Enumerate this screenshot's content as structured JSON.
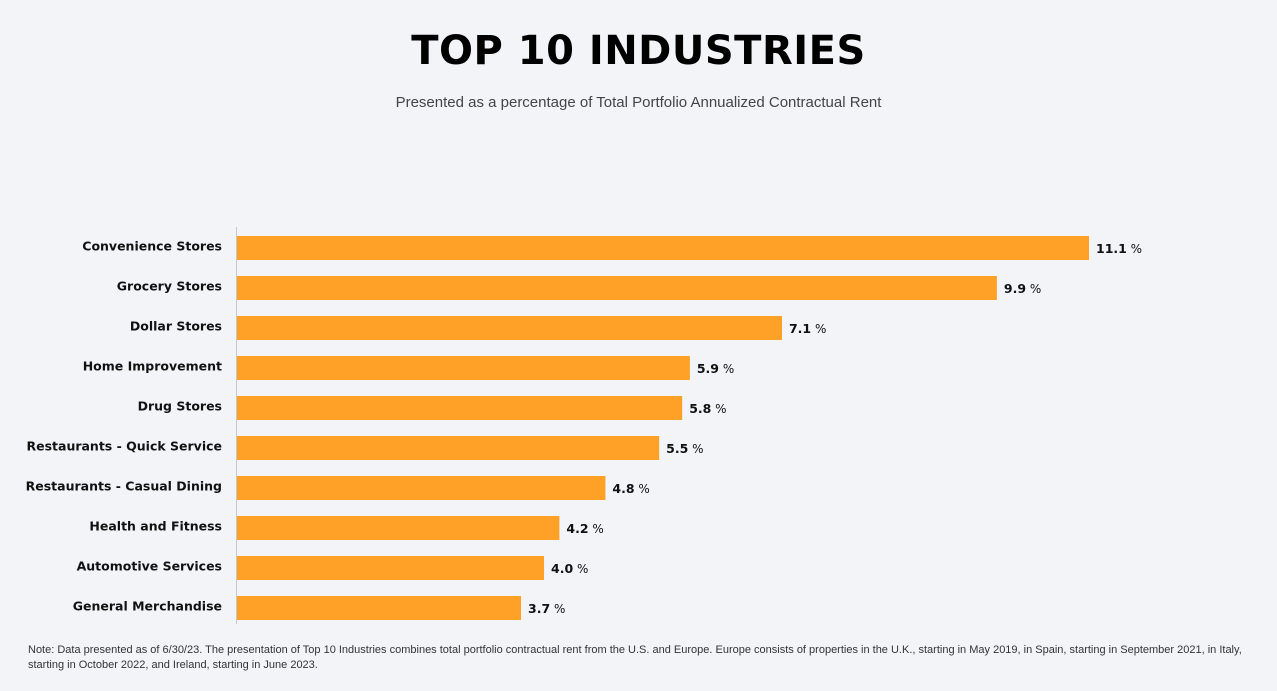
{
  "header": {
    "title": "TOP 10 INDUSTRIES",
    "subtitle": "Presented as a percentage of Total Portfolio Annualized Contractual Rent"
  },
  "footer": {
    "note": "Note: Data presented as of 6/30/23. The presentation of Top 10 Industries combines total portfolio contractual rent from the U.S. and Europe. Europe consists of properties in the U.K., starting in May 2019, in Spain, starting in September 2021, in Italy, starting in October 2022, and Ireland, starting in June 2023."
  },
  "colors": {
    "bar": "#ffa027",
    "axis": "#c8c8c8",
    "background": "#f3f4f8"
  },
  "chart_data": {
    "type": "bar",
    "orientation": "horizontal",
    "title": "TOP 10 INDUSTRIES",
    "subtitle": "Presented as a percentage of Total Portfolio Annualized Contractual Rent",
    "categories": [
      "Convenience Stores",
      "Grocery Stores",
      "Dollar Stores",
      "Home Improvement",
      "Drug Stores",
      "Restaurants - Quick Service",
      "Restaurants - Casual Dining",
      "Health and Fitness",
      "Automotive Services",
      "General Merchandise"
    ],
    "values": [
      11.1,
      9.9,
      7.1,
      5.9,
      5.8,
      5.5,
      4.8,
      4.2,
      4.0,
      3.7
    ],
    "value_labels": [
      "11.1",
      "9.9",
      "7.1",
      "5.9",
      "5.8",
      "5.5",
      "4.8",
      "4.2",
      "4.0",
      "3.7"
    ],
    "value_unit": "%",
    "xlim": [
      0,
      11.1
    ],
    "grid": false,
    "legend": "none"
  }
}
